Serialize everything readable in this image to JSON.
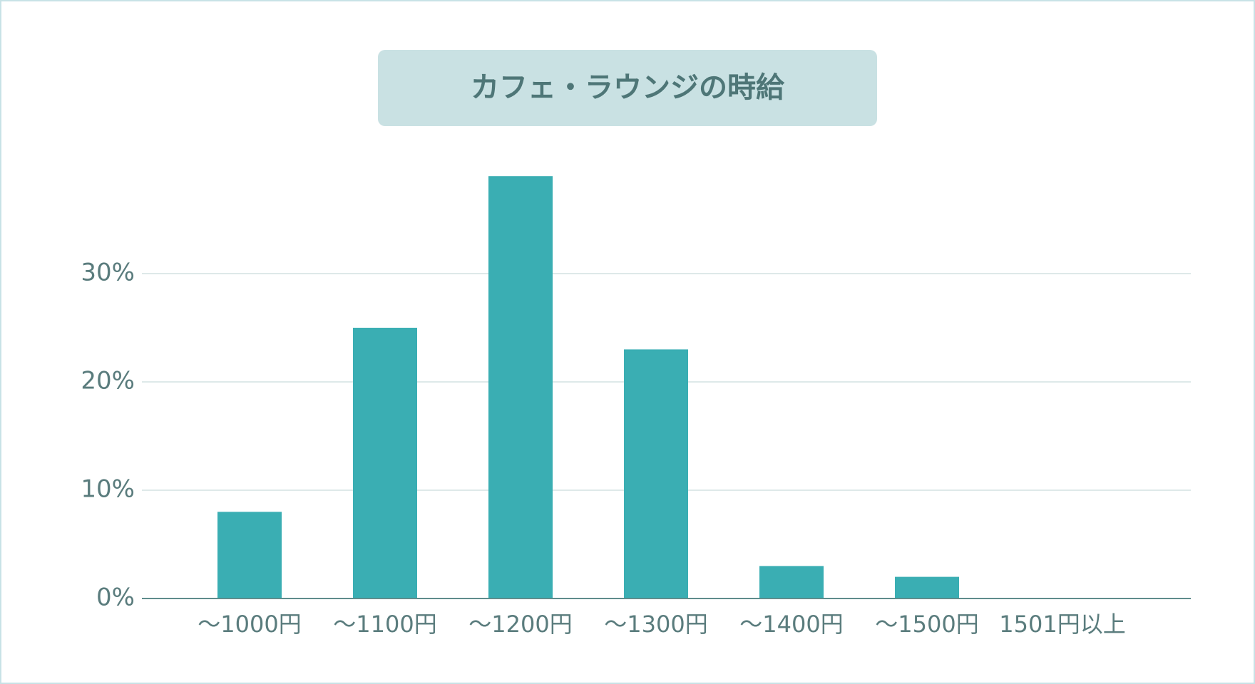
{
  "chart_data": {
    "type": "bar",
    "title": "カフェ・ラウンジの時給",
    "categories": [
      "〜1000円",
      "〜1100円",
      "〜1200円",
      "〜1300円",
      "〜1400円",
      "〜1500円",
      "1501円以上"
    ],
    "values": [
      8,
      25,
      39,
      23,
      3,
      2,
      0
    ],
    "color": "#3aaeb3",
    "ylim": [
      0,
      40
    ],
    "yticks": [
      {
        "value": 0,
        "label": "0%"
      },
      {
        "value": 10,
        "label": "10%"
      },
      {
        "value": 20,
        "label": "20%"
      },
      {
        "value": 30,
        "label": "30%"
      }
    ],
    "grid": true
  }
}
